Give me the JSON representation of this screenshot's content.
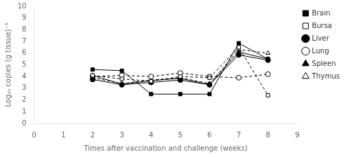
{
  "chart_data": {
    "type": "line",
    "x": [
      2,
      3,
      4,
      5,
      6,
      7,
      8
    ],
    "series": [
      {
        "name": "Brain",
        "color": "black",
        "marker": "square",
        "line_style": "solid",
        "values": [
          4.6,
          4.5,
          2.5,
          2.5,
          2.5,
          6.85,
          5.5
        ]
      },
      {
        "name": "Bursa",
        "color": "black",
        "marker": "square-open",
        "line_style": "dashed",
        "values": [
          4.1,
          3.8,
          3.6,
          4.0,
          3.9,
          6.5,
          2.4
        ]
      },
      {
        "name": "Liver",
        "color": "black",
        "marker": "circle",
        "line_style": "solid",
        "values": [
          3.75,
          3.3,
          3.5,
          3.7,
          3.3,
          5.85,
          5.4
        ]
      },
      {
        "name": "Lung",
        "color": "black",
        "marker": "circle-open",
        "line_style": "dashed",
        "values": [
          4.0,
          4.1,
          4.0,
          4.3,
          4.0,
          3.9,
          4.2
        ]
      },
      {
        "name": "Spleen",
        "color": "black",
        "marker": "triangle",
        "line_style": "solid",
        "values": [
          4.1,
          3.35,
          3.65,
          3.85,
          3.3,
          6.1,
          5.5
        ]
      },
      {
        "name": "Thymus",
        "color": "black",
        "marker": "triangle-open",
        "line_style": "dashed",
        "values": [
          3.9,
          3.4,
          3.7,
          3.9,
          3.4,
          6.3,
          6.0
        ]
      }
    ],
    "xlabel": "Times after vaccination and challenge (weeks)",
    "ylabel": "Log₁₀ copies (g tissue)⁻¹",
    "xlim": [
      0,
      9
    ],
    "ylim": [
      0,
      10
    ],
    "xticks": [
      0,
      1,
      2,
      3,
      4,
      5,
      6,
      7,
      8,
      9
    ],
    "yticks": [
      0,
      1,
      2,
      3,
      4,
      5,
      6,
      7,
      8,
      9,
      10
    ],
    "grid": false,
    "legend": "upper right"
  }
}
